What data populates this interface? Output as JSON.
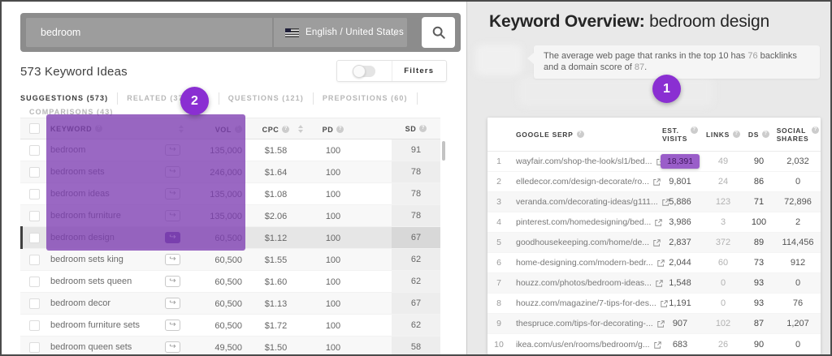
{
  "colors": {
    "accent_purple": "#8a2fd2",
    "overlay_purple": "#7e3eb2",
    "highlight_cell": "#9a5ec9",
    "panel_gray": "#e9e9e9"
  },
  "left_panel": {
    "search": {
      "value": "bedroom",
      "language": "English / United States"
    },
    "results_heading": "573 Keyword Ideas",
    "filters_label": "Filters",
    "tabs": [
      {
        "label": "SUGGESTIONS (573)",
        "active": true
      },
      {
        "label": "RELATED (377,350)",
        "active": false
      },
      {
        "label": "QUESTIONS (121)",
        "active": false
      },
      {
        "label": "PREPOSITIONS (60)",
        "active": false
      },
      {
        "label": "COMPARISONS (43)",
        "active": false
      }
    ],
    "annotation_badge": "2",
    "table": {
      "headers": {
        "keyword": "KEYWORD",
        "vol": "VOL",
        "cpc": "CPC",
        "pd": "PD",
        "sd": "SD"
      },
      "rows": [
        {
          "keyword": "bedroom",
          "vol": "135,000",
          "cpc": "$1.58",
          "pd": "100",
          "sd": "91",
          "selected": false
        },
        {
          "keyword": "bedroom sets",
          "vol": "246,000",
          "cpc": "$1.64",
          "pd": "100",
          "sd": "78",
          "selected": false
        },
        {
          "keyword": "bedroom ideas",
          "vol": "135,000",
          "cpc": "$1.08",
          "pd": "100",
          "sd": "78",
          "selected": false
        },
        {
          "keyword": "bedroom furniture",
          "vol": "135,000",
          "cpc": "$2.06",
          "pd": "100",
          "sd": "78",
          "selected": false
        },
        {
          "keyword": "bedroom design",
          "vol": "60,500",
          "cpc": "$1.12",
          "pd": "100",
          "sd": "67",
          "selected": true
        },
        {
          "keyword": "bedroom sets king",
          "vol": "60,500",
          "cpc": "$1.55",
          "pd": "100",
          "sd": "62",
          "selected": false
        },
        {
          "keyword": "bedroom sets queen",
          "vol": "60,500",
          "cpc": "$1.60",
          "pd": "100",
          "sd": "62",
          "selected": false
        },
        {
          "keyword": "bedroom decor",
          "vol": "60,500",
          "cpc": "$1.13",
          "pd": "100",
          "sd": "67",
          "selected": false
        },
        {
          "keyword": "bedroom furniture sets",
          "vol": "60,500",
          "cpc": "$1.72",
          "pd": "100",
          "sd": "62",
          "selected": false
        },
        {
          "keyword": "bedroom queen sets",
          "vol": "49,500",
          "cpc": "$1.50",
          "pd": "100",
          "sd": "58",
          "selected": false
        }
      ]
    }
  },
  "right_panel": {
    "heading_label": "Keyword Overview:",
    "heading_keyword": "bedroom design",
    "annotation_badge": "1",
    "tooltip": {
      "part1": "The average web page that ranks in the top 10 has ",
      "num1": "76",
      "part2": " backlinks and a domain score of ",
      "num2": "87",
      "part3": "."
    },
    "table": {
      "headers": {
        "serp": "GOOGLE SERP",
        "est_line1": "EST.",
        "est_line2": "VISITS",
        "links": "LINKS",
        "ds": "DS",
        "social_line1": "SOCIAL",
        "social_line2": "SHARES"
      },
      "rows": [
        {
          "rank": "1",
          "url": "wayfair.com/shop-the-look/sl1/bed...",
          "est_visits": "18,391",
          "links": "49",
          "ds": "90",
          "social": "2,032",
          "highlight": true
        },
        {
          "rank": "2",
          "url": "elledecor.com/design-decorate/ro...",
          "est_visits": "9,801",
          "links": "24",
          "ds": "86",
          "social": "0",
          "highlight": false
        },
        {
          "rank": "3",
          "url": "veranda.com/decorating-ideas/g111...",
          "est_visits": "5,886",
          "links": "123",
          "ds": "71",
          "social": "72,896",
          "highlight": false
        },
        {
          "rank": "4",
          "url": "pinterest.com/homedesigning/bed...",
          "est_visits": "3,986",
          "links": "3",
          "ds": "100",
          "social": "2",
          "highlight": false
        },
        {
          "rank": "5",
          "url": "goodhousekeeping.com/home/de...",
          "est_visits": "2,837",
          "links": "372",
          "ds": "89",
          "social": "114,456",
          "highlight": false
        },
        {
          "rank": "6",
          "url": "home-designing.com/modern-bedr...",
          "est_visits": "2,044",
          "links": "60",
          "ds": "73",
          "social": "912",
          "highlight": false
        },
        {
          "rank": "7",
          "url": "houzz.com/photos/bedroom-ideas...",
          "est_visits": "1,548",
          "links": "0",
          "ds": "93",
          "social": "0",
          "highlight": false
        },
        {
          "rank": "8",
          "url": "houzz.com/magazine/7-tips-for-des...",
          "est_visits": "1,191",
          "links": "0",
          "ds": "93",
          "social": "76",
          "highlight": false
        },
        {
          "rank": "9",
          "url": "thespruce.com/tips-for-decorating-...",
          "est_visits": "907",
          "links": "102",
          "ds": "87",
          "social": "1,207",
          "highlight": false
        },
        {
          "rank": "10",
          "url": "ikea.com/us/en/rooms/bedroom/g...",
          "est_visits": "683",
          "links": "26",
          "ds": "90",
          "social": "0",
          "highlight": false
        }
      ]
    }
  }
}
